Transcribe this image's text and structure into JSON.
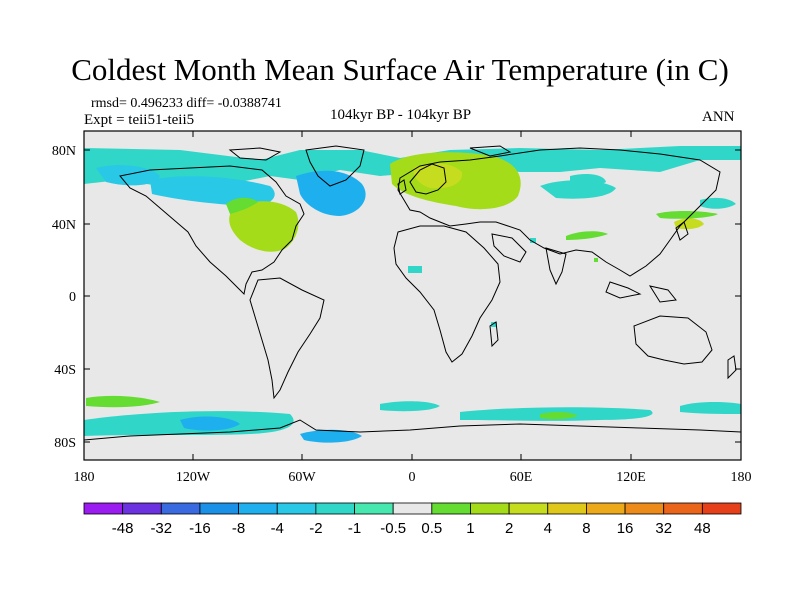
{
  "title": "Coldest Month Mean Surface Air Temperature (in C)",
  "stats": "rmsd= 0.496233 diff= -0.0388741",
  "expt": "Expt = teii51-teii5",
  "period": "104kyr BP - 104kyr BP",
  "season": "ANN",
  "lat_labels": [
    "80N",
    "40N",
    "0",
    "40S",
    "80S"
  ],
  "lon_labels": [
    "180",
    "120W",
    "60W",
    "0",
    "60E",
    "120E",
    "180"
  ],
  "legend": {
    "colors": [
      "#9a1cf0",
      "#6a32e0",
      "#3a6ae0",
      "#1a90e6",
      "#1eb0ee",
      "#28c8e6",
      "#30d6c8",
      "#46e8b0",
      "#e8e8e8",
      "#64dc32",
      "#a4dc1a",
      "#c6dc1e",
      "#e0c81a",
      "#ecaa1a",
      "#ec8a1a",
      "#ea641a",
      "#e6401a"
    ],
    "labels": [
      "-48",
      "-32",
      "-16",
      "-8",
      "-4",
      "-2",
      "-1",
      "-0.5",
      "0.5",
      "1",
      "2",
      "4",
      "8",
      "16",
      "32",
      "48"
    ]
  },
  "background_color": "#e8e8e8"
}
